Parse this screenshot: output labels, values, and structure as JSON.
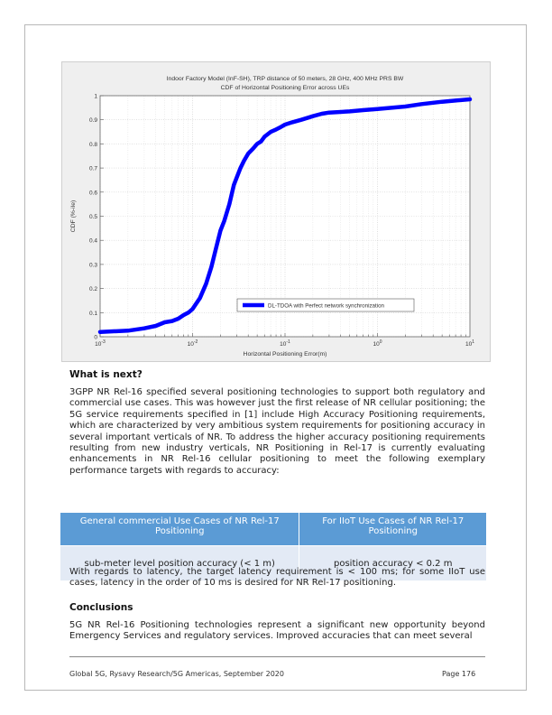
{
  "chart_data": {
    "type": "line",
    "title": "Indoor Factory Model (InF-SH), TRP distance of 50 meters, 28 GHz, 400 MHz PRS BW",
    "subtitle": "CDF of Horizontal Positioning Error across UEs",
    "xlabel": "Horizontal Positioning Error(m)",
    "ylabel": "CDF (%-ile)",
    "x_scale": "log",
    "xlim": [
      0.001,
      10
    ],
    "ylim": [
      0,
      1
    ],
    "x_tick_labels": [
      {
        "base": "10",
        "exp": "-3"
      },
      {
        "base": "10",
        "exp": "-2"
      },
      {
        "base": "10",
        "exp": "-1"
      },
      {
        "base": "10",
        "exp": "0"
      },
      {
        "base": "10",
        "exp": "1"
      }
    ],
    "y_tick_labels": [
      "0",
      "0.1",
      "0.2",
      "0.3",
      "0.4",
      "0.5",
      "0.6",
      "0.7",
      "0.8",
      "0.9",
      "1"
    ],
    "grid": true,
    "legend_position": "bottom-right",
    "line_color": "#0000ff",
    "series": [
      {
        "name": "DL-TDOA with Perfect network synchronization",
        "x": [
          0.001,
          0.002,
          0.003,
          0.004,
          0.005,
          0.006,
          0.007,
          0.008,
          0.009,
          0.01,
          0.012,
          0.014,
          0.016,
          0.018,
          0.02,
          0.022,
          0.025,
          0.028,
          0.03,
          0.033,
          0.036,
          0.04,
          0.045,
          0.05,
          0.055,
          0.06,
          0.07,
          0.08,
          0.09,
          0.1,
          0.12,
          0.15,
          0.2,
          0.25,
          0.3,
          0.5,
          0.7,
          1,
          2,
          3,
          5,
          10
        ],
        "y": [
          0.02,
          0.025,
          0.035,
          0.045,
          0.06,
          0.065,
          0.075,
          0.09,
          0.1,
          0.115,
          0.16,
          0.22,
          0.29,
          0.37,
          0.44,
          0.48,
          0.55,
          0.63,
          0.66,
          0.7,
          0.73,
          0.76,
          0.78,
          0.8,
          0.81,
          0.83,
          0.85,
          0.86,
          0.87,
          0.88,
          0.89,
          0.9,
          0.915,
          0.925,
          0.93,
          0.935,
          0.94,
          0.945,
          0.955,
          0.965,
          0.975,
          0.985
        ]
      }
    ]
  },
  "sections": {
    "next_heading": "What is next?",
    "next_paragraph": "3GPP NR Rel-16 specified several positioning technologies to support both regulatory and commercial use cases. This was however just the first release of NR cellular positioning; the 5G service requirements specified in [1] include High Accuracy Positioning requirements, which are characterized by very ambitious system requirements for positioning accuracy in several important verticals of NR. To address the higher accuracy positioning requirements resulting from new industry verticals, NR Positioning in Rel-17 is currently evaluating enhancements in NR Rel-16 cellular positioning to meet the following exemplary performance targets with regards to accuracy:",
    "latency_paragraph": "With regards to latency, the target latency requirement is < 100 ms; for some IIoT use cases, latency in the order of 10 ms is desired for NR Rel-17 positioning.",
    "conclusions_heading": "Conclusions",
    "conclusions_paragraph": "5G NR Rel-16 Positioning technologies represent a significant new opportunity beyond Emergency Services and regulatory services. Improved accuracies that can meet several"
  },
  "table": {
    "headers": [
      "General commercial Use Cases of NR Rel-17 Positioning",
      "For IIoT Use Cases of NR Rel-17 Positioning"
    ],
    "rows": [
      [
        "sub-meter level position accuracy (< 1 m)",
        "position accuracy < 0.2 m"
      ]
    ]
  },
  "footer": {
    "left": "Global 5G, Rysavy Research/5G Americas, September 2020",
    "right": "Page 176"
  }
}
